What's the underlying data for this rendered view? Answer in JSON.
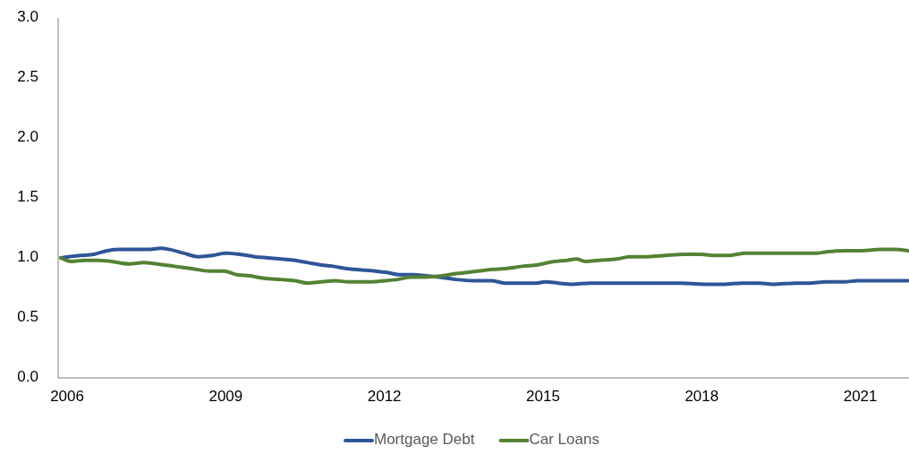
{
  "chart_data": {
    "type": "line",
    "xlim": [
      2005.83,
      2021.92
    ],
    "xticks": [
      2006,
      2009,
      2012,
      2015,
      2018,
      2021
    ],
    "ylim": [
      0,
      3
    ],
    "yticks": [
      {
        "value": 0,
        "label": "0.0"
      },
      {
        "value": 0.5,
        "label": "0.5"
      },
      {
        "value": 1,
        "label": "1.0"
      },
      {
        "value": 1.5,
        "label": "1.5"
      },
      {
        "value": 2,
        "label": "2.0"
      },
      {
        "value": 2.5,
        "label": "2.5"
      },
      {
        "value": 3,
        "label": "3.0"
      }
    ],
    "grid": false,
    "legend": "bottom",
    "marker": "none",
    "line_style": "solid",
    "series": [
      {
        "name": "Mortgage Debt",
        "color": "#2f5597",
        "x": [
          2005.88,
          2006.25,
          2006.51,
          2006.76,
          2007.01,
          2007.27,
          2007.52,
          2007.77,
          2007.94,
          2008.2,
          2008.48,
          2008.75,
          2008.99,
          2009.26,
          2009.55,
          2009.8,
          2010.05,
          2010.31,
          2010.56,
          2010.81,
          2011.03,
          2011.29,
          2011.57,
          2011.83,
          2012.03,
          2012.28,
          2012.54,
          2012.79,
          2013.04,
          2013.35,
          2013.69,
          2014.02,
          2014.28,
          2014.53,
          2014.87,
          2015.04,
          2015.29,
          2015.54,
          2015.88,
          2016.22,
          2016.56,
          2016.9,
          2017.23,
          2017.57,
          2018.08,
          2018.42,
          2018.75,
          2019.09,
          2019.34,
          2019.77,
          2020.02,
          2020.36,
          2020.7,
          2020.95,
          2021.46,
          2021.9
        ],
        "values": [
          1.0,
          1.02,
          1.03,
          1.06,
          1.07,
          1.07,
          1.07,
          1.08,
          1.07,
          1.04,
          1.01,
          1.02,
          1.04,
          1.03,
          1.01,
          1.0,
          0.99,
          0.98,
          0.96,
          0.94,
          0.93,
          0.91,
          0.9,
          0.89,
          0.88,
          0.86,
          0.86,
          0.85,
          0.84,
          0.82,
          0.81,
          0.81,
          0.79,
          0.79,
          0.79,
          0.8,
          0.79,
          0.78,
          0.79,
          0.79,
          0.79,
          0.79,
          0.79,
          0.79,
          0.78,
          0.78,
          0.79,
          0.79,
          0.78,
          0.79,
          0.79,
          0.8,
          0.8,
          0.81,
          0.81,
          0.81
        ]
      },
      {
        "name": "Car Loans",
        "color": "#548235",
        "x": [
          2005.88,
          2006.08,
          2006.34,
          2006.59,
          2006.84,
          2007.18,
          2007.44,
          2007.69,
          2008.03,
          2008.36,
          2008.7,
          2008.96,
          2009.21,
          2009.46,
          2009.72,
          2010.05,
          2010.31,
          2010.56,
          2010.81,
          2011.07,
          2011.32,
          2011.66,
          2012.0,
          2012.25,
          2012.5,
          2012.76,
          2013.09,
          2013.35,
          2013.6,
          2013.94,
          2014.28,
          2014.61,
          2014.87,
          2015.21,
          2015.46,
          2015.63,
          2015.8,
          2016.05,
          2016.39,
          2016.64,
          2016.98,
          2017.32,
          2017.66,
          2017.99,
          2018.25,
          2018.5,
          2018.84,
          2019.26,
          2019.6,
          2019.94,
          2020.19,
          2020.36,
          2020.7,
          2021.03,
          2021.37,
          2021.63,
          2021.9
        ],
        "values": [
          1.0,
          0.97,
          0.98,
          0.98,
          0.97,
          0.95,
          0.96,
          0.95,
          0.93,
          0.91,
          0.89,
          0.89,
          0.86,
          0.85,
          0.83,
          0.82,
          0.81,
          0.79,
          0.8,
          0.81,
          0.8,
          0.8,
          0.81,
          0.82,
          0.84,
          0.84,
          0.85,
          0.87,
          0.88,
          0.9,
          0.91,
          0.93,
          0.94,
          0.97,
          0.98,
          0.99,
          0.97,
          0.98,
          0.99,
          1.01,
          1.01,
          1.02,
          1.03,
          1.03,
          1.02,
          1.02,
          1.04,
          1.04,
          1.04,
          1.04,
          1.04,
          1.05,
          1.06,
          1.06,
          1.07,
          1.07,
          1.06
        ]
      }
    ]
  }
}
